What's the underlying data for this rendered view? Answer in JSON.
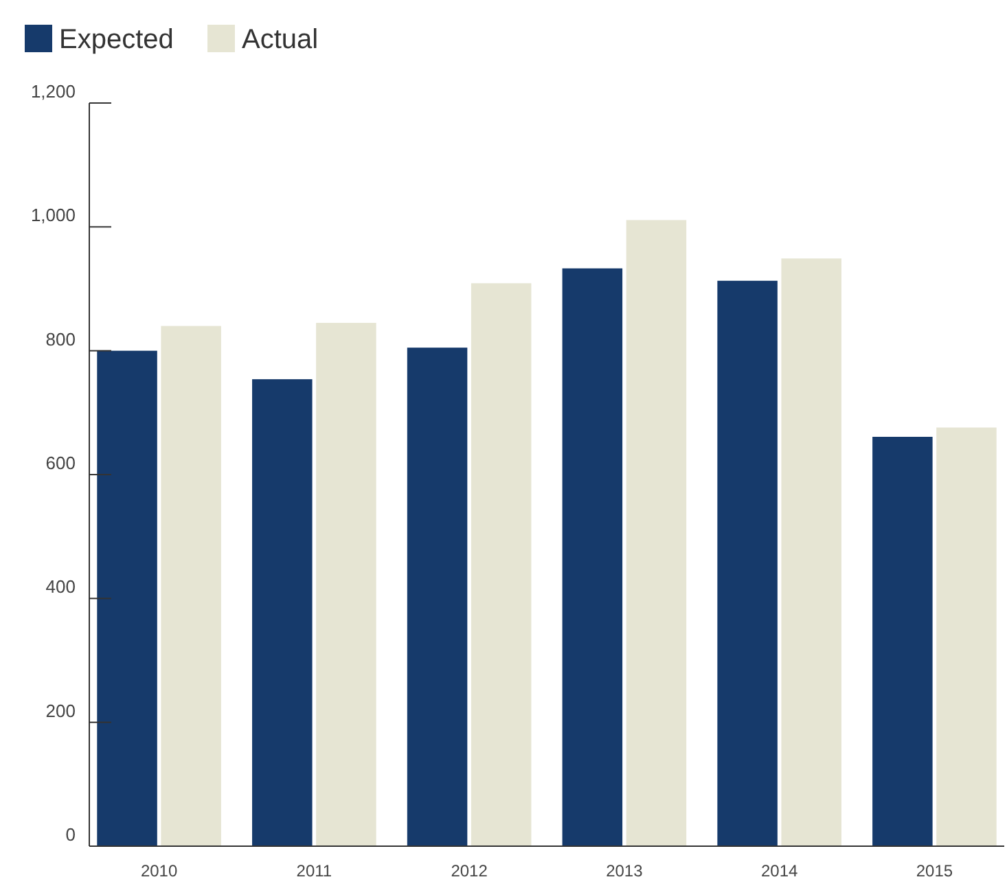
{
  "chart_data": {
    "type": "bar",
    "categories": [
      "2010",
      "2011",
      "2012",
      "2013",
      "2014",
      "2015"
    ],
    "series": [
      {
        "name": "Expected",
        "color": "#163a6b",
        "values": [
          800,
          754,
          805,
          933,
          913,
          661
        ]
      },
      {
        "name": "Actual",
        "color": "#e6e5d3",
        "values": [
          840,
          845,
          909,
          1011,
          949,
          676
        ]
      }
    ],
    "ylim": [
      0,
      1200
    ],
    "yticks": [
      0,
      {
        "value": 200,
        "label": "200"
      },
      {
        "value": 400,
        "label": "400"
      },
      {
        "value": 600,
        "label": "600"
      },
      {
        "value": 800,
        "label": "800"
      },
      {
        "value": 1000,
        "label": "1,000"
      },
      {
        "value": 1200,
        "label": "1,200"
      }
    ],
    "grid": false,
    "legend": "top left"
  }
}
